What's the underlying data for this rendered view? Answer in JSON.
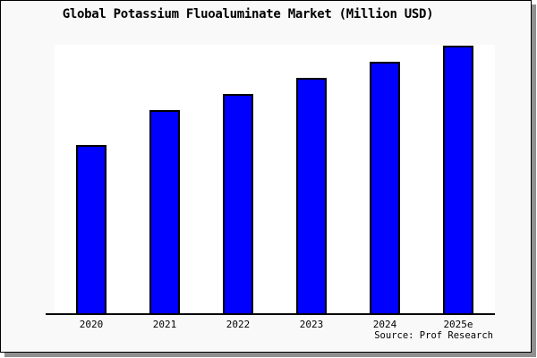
{
  "title": "Global Potassium Fluoaluminate Market (Million USD)",
  "source_label": "Source: Prof Research",
  "colors": {
    "bar_fill": "#0000ff",
    "bar_border": "#000000",
    "figure_background": "#f9f9f9",
    "plot_background": "#ffffff",
    "axis_line": "#000000",
    "shadow": "#909090",
    "text": "#000000"
  },
  "chart_data": {
    "type": "bar",
    "title": "Global Potassium Fluoaluminate Market (Million USD)",
    "categories": [
      "2020",
      "2021",
      "2022",
      "2023",
      "2024",
      "2025e"
    ],
    "values": [
      63,
      76,
      82,
      88,
      94,
      100
    ],
    "value_scale": "relative, 2025e = 100 (no y-axis labels shown)",
    "xlabel": "",
    "ylabel": "",
    "ylim": [
      0,
      100
    ],
    "grid": false,
    "legend": false,
    "y_axis_visible": false,
    "source": "Source: Prof Research"
  }
}
